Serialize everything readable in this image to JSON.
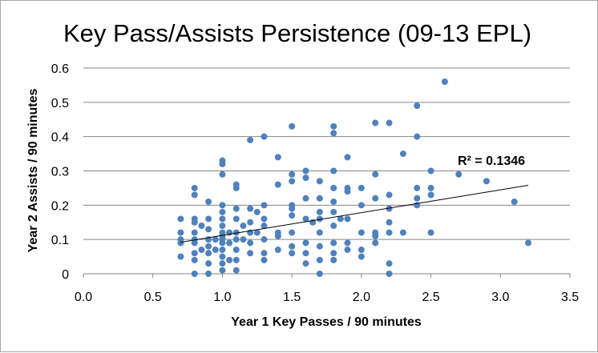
{
  "chart_data": {
    "type": "scatter",
    "title": "Key Pass/Assists Persistence (09-13 EPL)",
    "xlabel": "Year 1 Key Passes  / 90 minutes",
    "ylabel": "Year 2 Assists / 90 minutes",
    "xlim": [
      0,
      3.5
    ],
    "ylim": [
      0,
      0.6
    ],
    "xticks": [
      "0.0",
      "0.5",
      "1.0",
      "1.5",
      "2.0",
      "2.5",
      "3.0",
      "3.5"
    ],
    "yticks": [
      "0",
      "0.1",
      "0.2",
      "0.3",
      "0.4",
      "0.5",
      "0.6"
    ],
    "grid": "horizontal",
    "marker_color": "#4f81bd",
    "trendline": {
      "type": "linear",
      "label": "R² = 0.1346",
      "x": [
        0.7,
        3.2
      ],
      "y": [
        0.092,
        0.258
      ],
      "color": "#000000"
    },
    "series": [
      {
        "points": [
          [
            0.7,
            0.16
          ],
          [
            0.7,
            0.12
          ],
          [
            0.7,
            0.1
          ],
          [
            0.7,
            0.09
          ],
          [
            0.7,
            0.05
          ],
          [
            0.8,
            0.25
          ],
          [
            0.8,
            0.23
          ],
          [
            0.8,
            0.16
          ],
          [
            0.8,
            0.15
          ],
          [
            0.8,
            0.12
          ],
          [
            0.8,
            0.1
          ],
          [
            0.8,
            0.09
          ],
          [
            0.8,
            0.06
          ],
          [
            0.8,
            0.04
          ],
          [
            0.8,
            0.0
          ],
          [
            0.85,
            0.14
          ],
          [
            0.85,
            0.07
          ],
          [
            0.9,
            0.21
          ],
          [
            0.9,
            0.16
          ],
          [
            0.9,
            0.13
          ],
          [
            0.9,
            0.1
          ],
          [
            0.9,
            0.08
          ],
          [
            0.9,
            0.06
          ],
          [
            0.9,
            0.03
          ],
          [
            0.9,
            0.0
          ],
          [
            0.95,
            0.1
          ],
          [
            0.95,
            0.07
          ],
          [
            1.0,
            0.33
          ],
          [
            1.0,
            0.32
          ],
          [
            1.0,
            0.29
          ],
          [
            1.0,
            0.2
          ],
          [
            1.0,
            0.18
          ],
          [
            1.0,
            0.16
          ],
          [
            1.0,
            0.14
          ],
          [
            1.0,
            0.12
          ],
          [
            1.0,
            0.11
          ],
          [
            1.0,
            0.1
          ],
          [
            1.0,
            0.09
          ],
          [
            1.0,
            0.07
          ],
          [
            1.0,
            0.05
          ],
          [
            1.0,
            0.03
          ],
          [
            1.0,
            0.01
          ],
          [
            1.05,
            0.12
          ],
          [
            1.05,
            0.09
          ],
          [
            1.05,
            0.04
          ],
          [
            1.1,
            0.26
          ],
          [
            1.1,
            0.25
          ],
          [
            1.1,
            0.19
          ],
          [
            1.1,
            0.16
          ],
          [
            1.1,
            0.12
          ],
          [
            1.1,
            0.1
          ],
          [
            1.1,
            0.07
          ],
          [
            1.1,
            0.04
          ],
          [
            1.1,
            0.01
          ],
          [
            1.15,
            0.14
          ],
          [
            1.15,
            0.1
          ],
          [
            1.2,
            0.39
          ],
          [
            1.2,
            0.19
          ],
          [
            1.2,
            0.15
          ],
          [
            1.2,
            0.12
          ],
          [
            1.2,
            0.09
          ],
          [
            1.2,
            0.06
          ],
          [
            1.25,
            0.18
          ],
          [
            1.25,
            0.12
          ],
          [
            1.3,
            0.4
          ],
          [
            1.3,
            0.2
          ],
          [
            1.3,
            0.16
          ],
          [
            1.3,
            0.14
          ],
          [
            1.3,
            0.1
          ],
          [
            1.3,
            0.06
          ],
          [
            1.3,
            0.04
          ],
          [
            1.4,
            0.34
          ],
          [
            1.4,
            0.26
          ],
          [
            1.4,
            0.12
          ],
          [
            1.4,
            0.11
          ],
          [
            1.4,
            0.07
          ],
          [
            1.5,
            0.43
          ],
          [
            1.5,
            0.29
          ],
          [
            1.5,
            0.27
          ],
          [
            1.5,
            0.2
          ],
          [
            1.5,
            0.19
          ],
          [
            1.5,
            0.17
          ],
          [
            1.5,
            0.12
          ],
          [
            1.5,
            0.08
          ],
          [
            1.5,
            0.06
          ],
          [
            1.6,
            0.3
          ],
          [
            1.6,
            0.28
          ],
          [
            1.6,
            0.22
          ],
          [
            1.6,
            0.16
          ],
          [
            1.6,
            0.09
          ],
          [
            1.6,
            0.06
          ],
          [
            1.6,
            0.03
          ],
          [
            1.65,
            0.15
          ],
          [
            1.7,
            0.27
          ],
          [
            1.7,
            0.22
          ],
          [
            1.7,
            0.18
          ],
          [
            1.7,
            0.16
          ],
          [
            1.7,
            0.12
          ],
          [
            1.7,
            0.08
          ],
          [
            1.7,
            0.04
          ],
          [
            1.7,
            0.0
          ],
          [
            1.8,
            0.43
          ],
          [
            1.8,
            0.41
          ],
          [
            1.8,
            0.3
          ],
          [
            1.8,
            0.25
          ],
          [
            1.8,
            0.21
          ],
          [
            1.8,
            0.18
          ],
          [
            1.8,
            0.14
          ],
          [
            1.8,
            0.09
          ],
          [
            1.8,
            0.06
          ],
          [
            1.8,
            0.04
          ],
          [
            1.85,
            0.16
          ],
          [
            1.9,
            0.34
          ],
          [
            1.9,
            0.25
          ],
          [
            1.9,
            0.24
          ],
          [
            1.9,
            0.16
          ],
          [
            1.9,
            0.09
          ],
          [
            1.9,
            0.07
          ],
          [
            2.0,
            0.25
          ],
          [
            2.0,
            0.2
          ],
          [
            2.0,
            0.12
          ],
          [
            2.0,
            0.07
          ],
          [
            2.0,
            0.05
          ],
          [
            2.1,
            0.44
          ],
          [
            2.1,
            0.29
          ],
          [
            2.1,
            0.22
          ],
          [
            2.1,
            0.12
          ],
          [
            2.1,
            0.11
          ],
          [
            2.1,
            0.09
          ],
          [
            2.2,
            0.44
          ],
          [
            2.2,
            0.23
          ],
          [
            2.2,
            0.19
          ],
          [
            2.2,
            0.15
          ],
          [
            2.2,
            0.12
          ],
          [
            2.2,
            0.03
          ],
          [
            2.2,
            0.0
          ],
          [
            2.3,
            0.35
          ],
          [
            2.3,
            0.12
          ],
          [
            2.4,
            0.49
          ],
          [
            2.4,
            0.4
          ],
          [
            2.4,
            0.25
          ],
          [
            2.4,
            0.22
          ],
          [
            2.4,
            0.2
          ],
          [
            2.5,
            0.3
          ],
          [
            2.5,
            0.25
          ],
          [
            2.5,
            0.23
          ],
          [
            2.5,
            0.12
          ],
          [
            2.6,
            0.56
          ],
          [
            2.7,
            0.29
          ],
          [
            2.9,
            0.27
          ],
          [
            3.1,
            0.21
          ],
          [
            3.2,
            0.09
          ]
        ]
      }
    ]
  }
}
